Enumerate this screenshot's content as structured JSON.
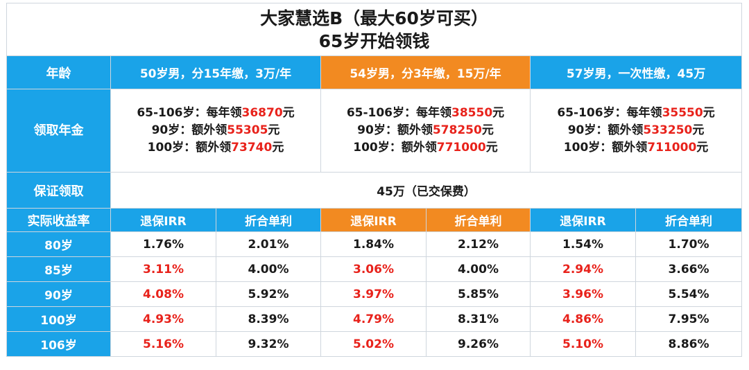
{
  "title": {
    "line1": "大家慧选B（最大60岁可买）",
    "line2": "65岁开始领钱"
  },
  "header": {
    "age_label": "年龄",
    "plans": [
      "50岁男，分15年缴，3万/年",
      "54岁男，分3年缴，15万/年",
      "57岁男，一次性缴，45万"
    ]
  },
  "annuity": {
    "label": "领取年金",
    "plans": [
      {
        "l1_prefix": "65-106岁：每年领",
        "l1_value": "36870",
        "l1_suffix": "元",
        "l2_prefix": "90岁：额外领",
        "l2_value": "55305",
        "l2_suffix": "元",
        "l3_prefix": "100岁：额外领",
        "l3_value": "73740",
        "l3_suffix": "元"
      },
      {
        "l1_prefix": "65-106岁：每年领",
        "l1_value": "38550",
        "l1_suffix": "元",
        "l2_prefix": "90岁：额外领",
        "l2_value": "578250",
        "l2_suffix": "元",
        "l3_prefix": "100岁：额外领",
        "l3_value": "771000",
        "l3_suffix": "元"
      },
      {
        "l1_prefix": "65-106岁：每年领",
        "l1_value": "35550",
        "l1_suffix": "元",
        "l2_prefix": "90岁：额外领",
        "l2_value": "533250",
        "l2_suffix": "元",
        "l3_prefix": "100岁：额外领",
        "l3_value": "711000",
        "l3_suffix": "元"
      }
    ]
  },
  "guarantee": {
    "label": "保证领取",
    "value": "45万（已交保费）"
  },
  "returns": {
    "label": "实际收益率",
    "subheads": [
      "退保IRR",
      "折合单利",
      "退保IRR",
      "折合单利",
      "退保IRR",
      "折合单利"
    ],
    "rows": [
      {
        "age": "80岁",
        "cells": [
          "1.76%",
          "2.01%",
          "1.84%",
          "2.12%",
          "1.54%",
          "1.70%"
        ]
      },
      {
        "age": "85岁",
        "cells": [
          "3.11%",
          "4.00%",
          "3.06%",
          "4.00%",
          "2.94%",
          "3.66%"
        ]
      },
      {
        "age": "90岁",
        "cells": [
          "4.08%",
          "5.92%",
          "3.97%",
          "5.85%",
          "3.96%",
          "5.54%"
        ]
      },
      {
        "age": "100岁",
        "cells": [
          "4.93%",
          "8.39%",
          "4.79%",
          "8.31%",
          "4.86%",
          "7.95%"
        ]
      },
      {
        "age": "106岁",
        "cells": [
          "5.16%",
          "9.32%",
          "5.02%",
          "9.26%",
          "5.10%",
          "8.86%"
        ]
      }
    ]
  },
  "colors": {
    "header_blue": "#1aa3e8",
    "highlight_orange": "#f28a21",
    "value_red": "#e8221b"
  }
}
